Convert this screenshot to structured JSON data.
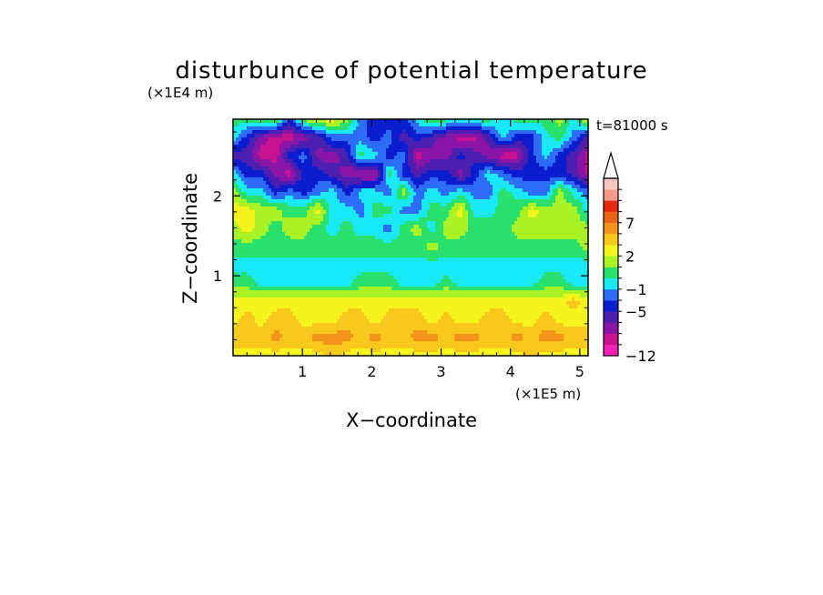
{
  "chart_data": {
    "type": "heatmap",
    "title": "disturbunce of potential temperature",
    "x_scale_label": "(×1E5 m)",
    "y_scale_label": "(×1E4 m)",
    "xlabel": "X−coordinate",
    "ylabel": "Z−coordinate",
    "time_label": "t=81000 s",
    "xlim": [
      0,
      5.12
    ],
    "ylim": [
      0,
      2.96
    ],
    "x_ticks": [
      1,
      2,
      3,
      4,
      5
    ],
    "y_ticks": [
      1,
      2
    ],
    "x_tick_labels": [
      "1",
      "2",
      "3",
      "4",
      "5"
    ],
    "y_tick_labels": [
      "1",
      "2"
    ],
    "colorbar": {
      "colors": [
        "#f222b8",
        "#c8128f",
        "#8a14a5",
        "#4c1fb0",
        "#0a1ed0",
        "#2c6cf7",
        "#19e8f8",
        "#29e06c",
        "#a9f226",
        "#f5f51d",
        "#f8c81c",
        "#f4941b",
        "#ec6419",
        "#e42a10",
        "#f69a8e",
        "#f7c7bf"
      ],
      "labels": [
        {
          "text": "−12",
          "level": 0
        },
        {
          "text": "−5",
          "level": 4
        },
        {
          "text": "−1",
          "level": 6
        },
        {
          "text": "2",
          "level": 9
        },
        {
          "text": "7",
          "level": 12
        }
      ],
      "extend": "max"
    },
    "field": {
      "rows_top_to_bottom": [
        "77884899854446876776777869",
        "64211235554534321136446753",
        "33114522376451224321146431",
        "64421443211743442465444431",
        "86645456466585656557655865",
        "99887796657755779667798886",
        "89878876766578688777888888",
        "77777777777777877777777778",
        "66666666666666666666666666",
        "77666666677766676666667766",
        "999999999999999999999999a9",
        "9a9aa999aa9aaa9a99aa99a999",
        "aaabaabbbabaabbabbaababbaa",
        "9999999a9999999999999a9999"
      ],
      "level_code": "digits 0-9 then a-f map to colour levels 0-15"
    }
  }
}
